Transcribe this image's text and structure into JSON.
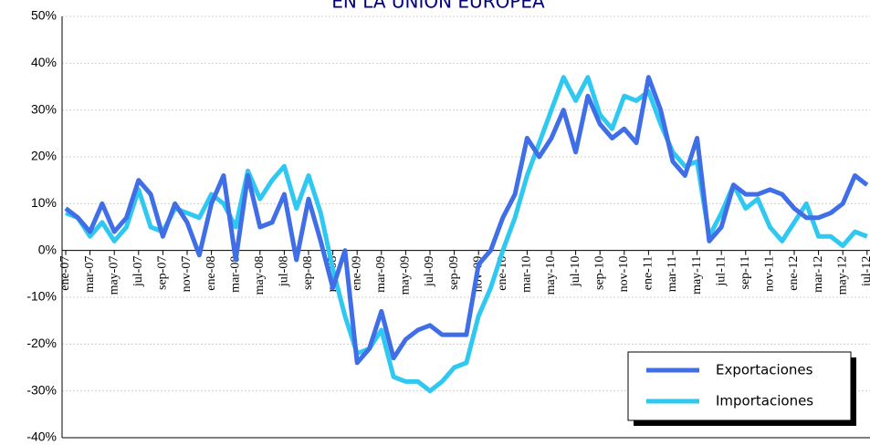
{
  "chart_data": {
    "type": "line",
    "title": "EN LA UNION EUROPEA",
    "categories": [
      "ene-07",
      null,
      "mar-07",
      null,
      "may-07",
      null,
      "jul-07",
      null,
      "sep-07",
      null,
      "nov-07",
      null,
      "ene-08",
      null,
      "mar-08",
      null,
      "may-08",
      null,
      "jul-08",
      null,
      "sep-08",
      null,
      "nov-08",
      null,
      "ene-09",
      null,
      "mar-09",
      null,
      "may-09",
      null,
      "jul-09",
      null,
      "sep-09",
      null,
      "nov-09",
      null,
      "ene-10",
      null,
      "mar-10",
      null,
      "may-10",
      null,
      "jul-10",
      null,
      "sep-10",
      null,
      "nov-10",
      null,
      "ene-11",
      null,
      "mar-11",
      null,
      "may-11",
      null,
      "jul-11",
      null,
      "sep-11",
      null,
      "nov-11",
      null,
      "ene-12",
      null,
      "mar-12",
      null,
      "may-12",
      null,
      "jul-12"
    ],
    "series": [
      {
        "name": "Exportaciones",
        "color": "#3f6ee6",
        "values": [
          9,
          7,
          4,
          10,
          4,
          7,
          15,
          12,
          3,
          10,
          6,
          -1,
          10,
          16,
          -2,
          16,
          5,
          6,
          12,
          -2,
          11,
          2,
          -8,
          0,
          -24,
          -21,
          -13,
          -23,
          -19,
          -17,
          -16,
          -18,
          -18,
          -18,
          -3,
          0,
          7,
          12,
          24,
          20,
          24,
          30,
          21,
          33,
          27,
          24,
          26,
          23,
          37,
          30,
          19,
          16,
          24,
          2,
          5,
          14,
          12,
          12,
          13,
          12,
          9,
          7,
          7,
          8,
          10,
          16,
          14
        ]
      },
      {
        "name": "Importaciones",
        "color": "#2ec8f0",
        "values": [
          8,
          7,
          3,
          6,
          2,
          5,
          13,
          5,
          4,
          9,
          8,
          7,
          12,
          10,
          5,
          17,
          11,
          15,
          18,
          9,
          16,
          8,
          -4,
          -14,
          -22,
          -21,
          -17,
          -27,
          -28,
          -28,
          -30,
          -28,
          -25,
          -24,
          -14,
          -8,
          0,
          7,
          16,
          23,
          30,
          37,
          32,
          37,
          29,
          26,
          33,
          32,
          34,
          27,
          21,
          18,
          19,
          3,
          8,
          14,
          9,
          11,
          5,
          2,
          6,
          10,
          3,
          3,
          1,
          4,
          3
        ]
      }
    ],
    "ylim": [
      -40,
      50
    ],
    "yticks": [
      {
        "value": -40,
        "label": "-40%"
      },
      {
        "value": -30,
        "label": "-30%"
      },
      {
        "value": -20,
        "label": "-20%"
      },
      {
        "value": -10,
        "label": "-10%"
      },
      {
        "value": 0,
        "label": "0%"
      },
      {
        "value": 10,
        "label": "10%"
      },
      {
        "value": 20,
        "label": "20%"
      },
      {
        "value": 30,
        "label": "30%"
      },
      {
        "value": 40,
        "label": "40%"
      },
      {
        "value": 50,
        "label": "50%"
      }
    ],
    "grid": true
  }
}
